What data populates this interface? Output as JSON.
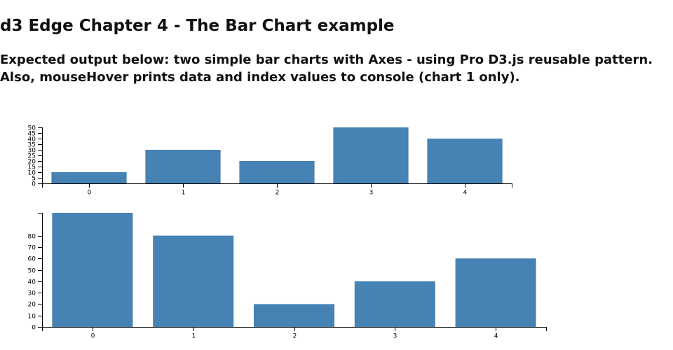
{
  "header": {
    "title": "d3 Edge Chapter 4 - The Bar Chart example",
    "subtitle": "Expected output below: two simple bar charts with Axes - using Pro D3.js reusable pattern. Also, mouseHover prints data and index values to console (chart 1 only)."
  },
  "chart_data": [
    {
      "type": "bar",
      "categories": [
        "0",
        "1",
        "2",
        "3",
        "4"
      ],
      "values": [
        10,
        30,
        20,
        50,
        40
      ],
      "ylim": [
        0,
        50
      ],
      "yticks": [
        0,
        5,
        10,
        15,
        20,
        25,
        30,
        35,
        40,
        45,
        50
      ],
      "title": "",
      "xlabel": "",
      "ylabel": "",
      "color": "#4682b4",
      "grid": false
    },
    {
      "type": "bar",
      "categories": [
        "0",
        "1",
        "2",
        "3",
        "4"
      ],
      "values": [
        100,
        80,
        20,
        40,
        60
      ],
      "ylim": [
        0,
        100
      ],
      "yticks": [
        0,
        10,
        20,
        30,
        40,
        50,
        60,
        70,
        80
      ],
      "title": "",
      "xlabel": "",
      "ylabel": "",
      "color": "#4682b4",
      "grid": false
    }
  ]
}
